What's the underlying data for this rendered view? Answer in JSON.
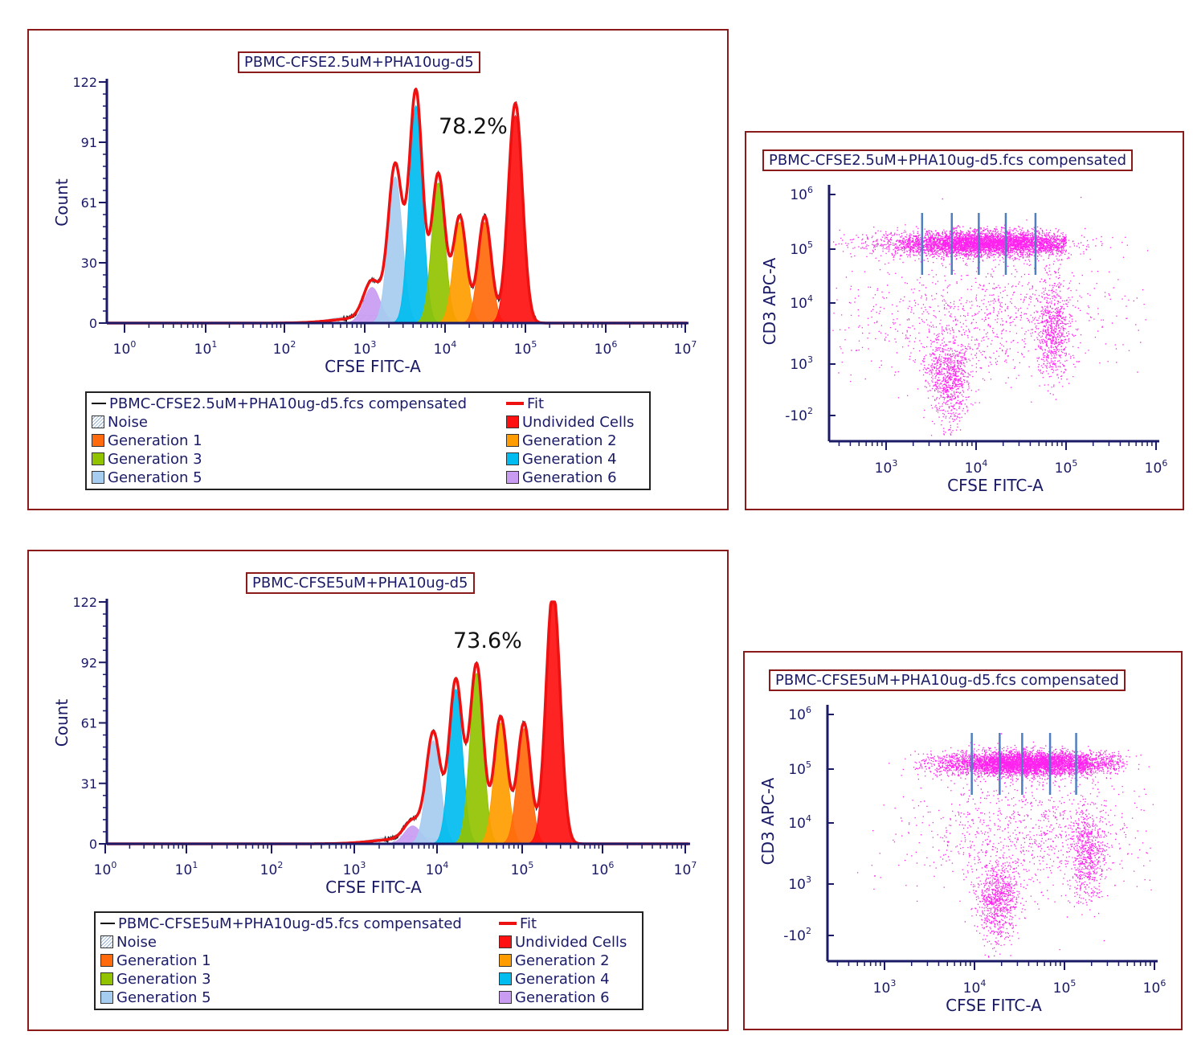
{
  "colors": {
    "noise": "#dfe8f2",
    "gen1": "#ff6a0c",
    "gen2": "#ff9d00",
    "gen3": "#92c300",
    "gen4": "#00bcef",
    "gen5": "#a6ccf0",
    "gen6": "#c99cf2",
    "undivided": "#ff1111",
    "fit": "#ee1111",
    "raw": "#111111",
    "dots": "#ff22ee",
    "gate": "#4f7fc0"
  },
  "chart_data": [
    {
      "type": "area",
      "title": "PBMC-CFSE2.5uM+PHA10ug-d5",
      "annotation": "78.2%",
      "xlabel": "CFSE FITC-A",
      "ylabel": "Count",
      "x_scale": "log",
      "xlim": [
        0,
        7
      ],
      "ylim": [
        0,
        122
      ],
      "y_ticks": [
        "0",
        "30",
        "61",
        "91",
        "122"
      ],
      "x_ticks": [
        "0",
        "1",
        "2",
        "3",
        "4",
        "5",
        "6",
        "7"
      ],
      "peaks": [
        {
          "name": "Generation 6",
          "color_key": "gen6",
          "center": 3.2,
          "amp": 18,
          "width": 0.1
        },
        {
          "name": "Generation 5",
          "color_key": "gen5",
          "center": 3.48,
          "amp": 74,
          "width": 0.085
        },
        {
          "name": "Generation 4",
          "color_key": "gen4",
          "center": 3.73,
          "amp": 110,
          "width": 0.08
        },
        {
          "name": "Generation 3",
          "color_key": "gen3",
          "center": 4.0,
          "amp": 71,
          "width": 0.08
        },
        {
          "name": "Generation 2",
          "color_key": "gen2",
          "center": 4.26,
          "amp": 51,
          "width": 0.08
        },
        {
          "name": "Generation 1",
          "color_key": "gen1",
          "center": 4.56,
          "amp": 51,
          "width": 0.08
        },
        {
          "name": "Undivided Cells",
          "color_key": "undivided",
          "center": 4.93,
          "amp": 105,
          "width": 0.085
        }
      ],
      "legend": {
        "raw": "PBMC-CFSE2.5uM+PHA10ug-d5.fcs compensated",
        "fit": "Fit",
        "items": [
          "Noise",
          "Undivided Cells",
          "Generation 1",
          "Generation 2",
          "Generation 3",
          "Generation 4",
          "Generation 5",
          "Generation 6"
        ]
      }
    },
    {
      "type": "scatter",
      "title": "PBMC-CFSE2.5uM+PHA10ug-d5.fcs compensated",
      "xlabel": "CFSE FITC-A",
      "ylabel": "CD3 APC-A",
      "x_ticks": [
        "3",
        "4",
        "5",
        "6"
      ],
      "y_ticks": [
        "-2",
        "3",
        "4",
        "5",
        "6"
      ],
      "xlim": [
        2.0,
        6.0
      ],
      "clusters": [
        {
          "cx": 4.1,
          "cy": 5.18,
          "sx": 0.55,
          "sy": 0.11,
          "n": 5200,
          "xmin": 2.0,
          "xmax": 5.0
        },
        {
          "cx": 4.85,
          "cy": 3.6,
          "sx": 0.09,
          "sy": 0.45,
          "n": 650
        },
        {
          "cx": 3.7,
          "cy": 2.85,
          "sx": 0.13,
          "sy": 0.3,
          "n": 650
        },
        {
          "cx": 4.0,
          "cy": 3.9,
          "sx": 0.8,
          "sy": 0.55,
          "n": 1000
        },
        {
          "cx": 3.7,
          "cy": 2.2,
          "sx": 0.1,
          "sy": 0.35,
          "n": 180
        }
      ],
      "gates_x": [
        3.4,
        3.73,
        4.03,
        4.33,
        4.66
      ]
    },
    {
      "type": "area",
      "title": "PBMC-CFSE5uM+PHA10ug-d5",
      "annotation": "73.6%",
      "xlabel": "CFSE FITC-A",
      "ylabel": "Count",
      "x_scale": "log",
      "xlim": [
        0,
        7
      ],
      "ylim": [
        0,
        122
      ],
      "y_ticks": [
        "0",
        "31",
        "61",
        "92",
        "122"
      ],
      "x_ticks": [
        "0",
        "1",
        "2",
        "3",
        "4",
        "5",
        "6",
        "7"
      ],
      "peaks": [
        {
          "name": "Generation 6",
          "color_key": "gen6",
          "center": 3.68,
          "amp": 9,
          "width": 0.1
        },
        {
          "name": "Generation 5",
          "color_key": "gen5",
          "center": 3.93,
          "amp": 52,
          "width": 0.085
        },
        {
          "name": "Generation 4",
          "color_key": "gen4",
          "center": 4.2,
          "amp": 78,
          "width": 0.08
        },
        {
          "name": "Generation 3",
          "color_key": "gen3",
          "center": 4.45,
          "amp": 86,
          "width": 0.08
        },
        {
          "name": "Generation 2",
          "color_key": "gen2",
          "center": 4.74,
          "amp": 61,
          "width": 0.08
        },
        {
          "name": "Generation 1",
          "color_key": "gen1",
          "center": 5.02,
          "amp": 58,
          "width": 0.08
        },
        {
          "name": "Undivided Cells",
          "color_key": "undivided",
          "center": 5.37,
          "amp": 122,
          "width": 0.085
        }
      ],
      "legend": {
        "raw": "PBMC-CFSE5uM+PHA10ug-d5.fcs compensated",
        "fit": "Fit",
        "items": [
          "Noise",
          "Undivided Cells",
          "Generation 1",
          "Generation 2",
          "Generation 3",
          "Generation 4",
          "Generation 5",
          "Generation 6"
        ]
      }
    },
    {
      "type": "scatter",
      "title": "PBMC-CFSE5uM+PHA10ug-d5.fcs compensated",
      "xlabel": "CFSE FITC-A",
      "ylabel": "CD3 APC-A",
      "x_ticks": [
        "3",
        "4",
        "5",
        "6"
      ],
      "y_ticks": [
        "-2",
        "3",
        "4",
        "5",
        "6"
      ],
      "xlim": [
        2.0,
        6.0
      ],
      "clusters": [
        {
          "cx": 4.6,
          "cy": 5.18,
          "sx": 0.5,
          "sy": 0.11,
          "n": 5200,
          "xmin": 3.3,
          "xmax": 5.65
        },
        {
          "cx": 5.25,
          "cy": 3.55,
          "sx": 0.1,
          "sy": 0.4,
          "n": 650
        },
        {
          "cx": 4.25,
          "cy": 2.8,
          "sx": 0.13,
          "sy": 0.3,
          "n": 650
        },
        {
          "cx": 4.6,
          "cy": 3.9,
          "sx": 0.7,
          "sy": 0.55,
          "n": 1000
        },
        {
          "cx": 4.25,
          "cy": 2.2,
          "sx": 0.1,
          "sy": 0.35,
          "n": 180
        }
      ],
      "gates_x": [
        3.97,
        4.28,
        4.53,
        4.84,
        5.13
      ]
    }
  ]
}
